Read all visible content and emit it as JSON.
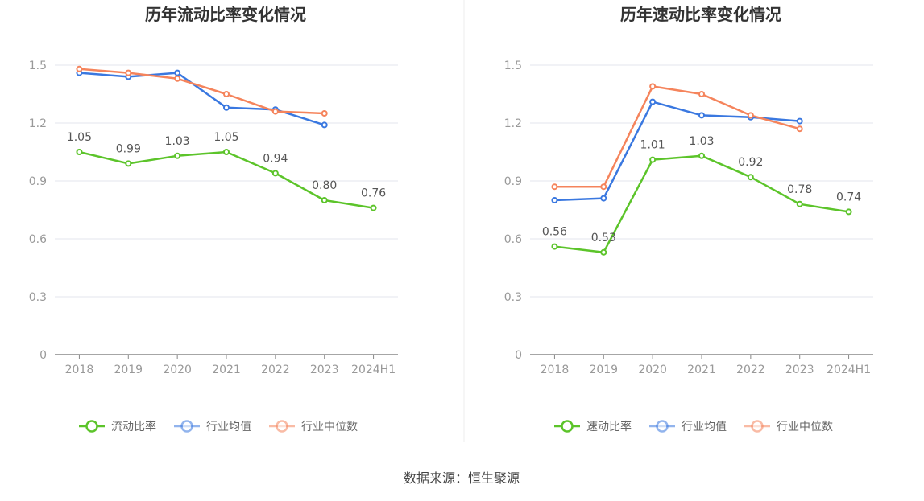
{
  "source_label": "数据来源：恒生聚源",
  "chart_data": [
    {
      "type": "line",
      "title": "历年流动比率变化情况",
      "categories": [
        "2018",
        "2019",
        "2020",
        "2021",
        "2022",
        "2023",
        "2024H1"
      ],
      "ylim": [
        0,
        1.5
      ],
      "yticks": [
        "0",
        "0.3",
        "0.6",
        "0.9",
        "1.2",
        "1.5"
      ],
      "grid": true,
      "legend_position": "bottom",
      "series": [
        {
          "name": "流动比率",
          "color": "#5cc42a",
          "labeled": true,
          "values": [
            1.05,
            0.99,
            1.03,
            1.05,
            0.94,
            0.8,
            0.76
          ],
          "labels": [
            "1.05",
            "0.99",
            "1.03",
            "1.05",
            "0.94",
            "0.80",
            "0.76"
          ]
        },
        {
          "name": "行业均值",
          "color": "#3a78e0",
          "labeled": false,
          "values": [
            1.46,
            1.44,
            1.46,
            1.28,
            1.27,
            1.19,
            null
          ]
        },
        {
          "name": "行业中位数",
          "color": "#f5845c",
          "labeled": false,
          "values": [
            1.48,
            1.46,
            1.43,
            1.35,
            1.26,
            1.25,
            null
          ]
        }
      ]
    },
    {
      "type": "line",
      "title": "历年速动比率变化情况",
      "categories": [
        "2018",
        "2019",
        "2020",
        "2021",
        "2022",
        "2023",
        "2024H1"
      ],
      "ylim": [
        0,
        1.5
      ],
      "yticks": [
        "0",
        "0.3",
        "0.6",
        "0.9",
        "1.2",
        "1.5"
      ],
      "grid": true,
      "legend_position": "bottom",
      "series": [
        {
          "name": "速动比率",
          "color": "#5cc42a",
          "labeled": true,
          "values": [
            0.56,
            0.53,
            1.01,
            1.03,
            0.92,
            0.78,
            0.74
          ],
          "labels": [
            "0.56",
            "0.53",
            "1.01",
            "1.03",
            "0.92",
            "0.78",
            "0.74"
          ]
        },
        {
          "name": "行业均值",
          "color": "#3a78e0",
          "labeled": false,
          "values": [
            0.8,
            0.81,
            1.31,
            1.24,
            1.23,
            1.21,
            null
          ]
        },
        {
          "name": "行业中位数",
          "color": "#f5845c",
          "labeled": false,
          "values": [
            0.87,
            0.87,
            1.39,
            1.35,
            1.24,
            1.17,
            null
          ]
        }
      ]
    }
  ]
}
